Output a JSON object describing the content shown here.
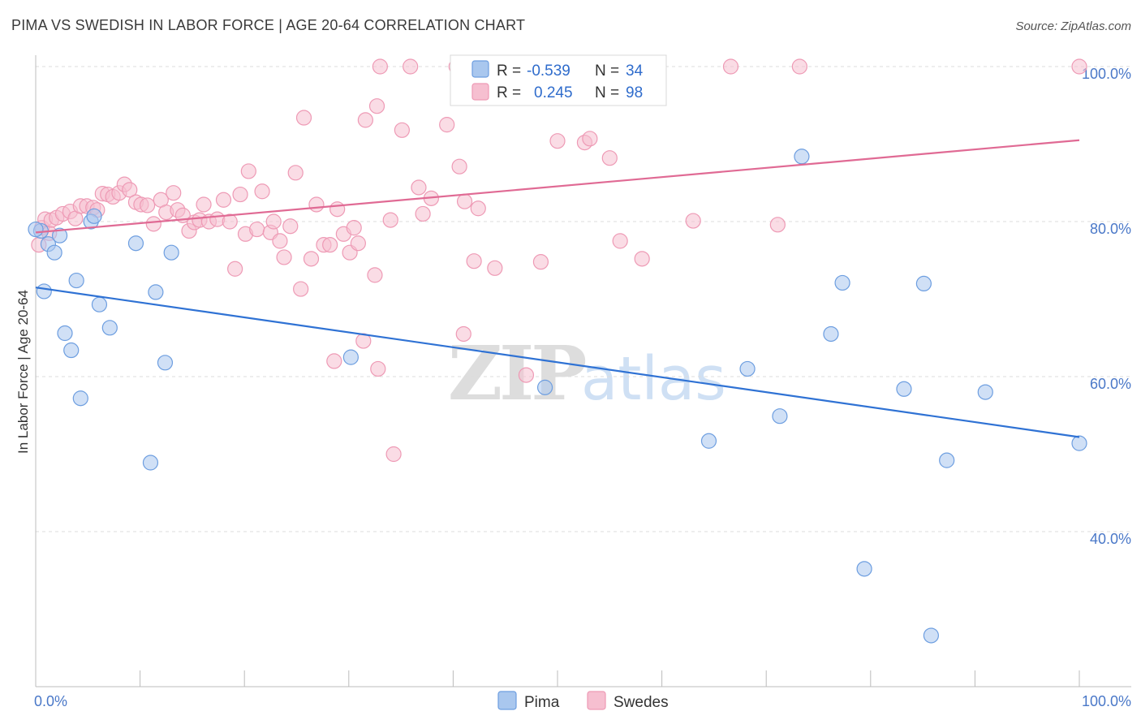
{
  "header": {
    "title": "PIMA VS SWEDISH IN LABOR FORCE | AGE 20-64 CORRELATION CHART",
    "source": "Source: ZipAtlas.com"
  },
  "watermark": {
    "zip": "ZIP",
    "atlas": "atlas"
  },
  "legend_box": {
    "rows": [
      {
        "r_label": "R =",
        "r_value": "-0.539",
        "n_label": "N =",
        "n_value": "34"
      },
      {
        "r_label": "R =",
        "r_value": "0.245",
        "n_label": "N =",
        "n_value": "98"
      }
    ]
  },
  "bottom_legend": {
    "pima": "Pima",
    "swedes": "Swedes"
  },
  "colors": {
    "pima_fill": "#a9c7ee",
    "pima_stroke": "#6d9ee0",
    "pima_line": "#2f72d4",
    "swedes_fill": "#f6bfd0",
    "swedes_stroke": "#ee9ab5",
    "swedes_line": "#e06a94",
    "value_blue": "#2f6ccc",
    "grid": "#dcdcdc"
  },
  "chart_data": {
    "type": "scatter",
    "title": "PIMA VS SWEDISH IN LABOR FORCE | AGE 20-64 CORRELATION CHART",
    "xlabel": "",
    "ylabel": "In Labor Force | Age 20-64",
    "xlim": [
      0,
      100
    ],
    "ylim": [
      20,
      101
    ],
    "x_tick_labels": [
      "0.0%",
      "100.0%"
    ],
    "y_ticks": [
      40,
      60,
      80,
      100
    ],
    "y_tick_labels": [
      "40.0%",
      "60.0%",
      "80.0%",
      "100.0%"
    ],
    "legend_position": "bottom-center",
    "series": [
      {
        "name": "Pima",
        "r": -0.539,
        "n": 34,
        "trend": {
          "x": [
            0,
            100
          ],
          "y": [
            71.5,
            52.2
          ]
        },
        "points": [
          {
            "x": 0.5,
            "y": 78.8
          },
          {
            "x": 1.2,
            "y": 77.1
          },
          {
            "x": 0.8,
            "y": 71.0
          },
          {
            "x": 1.8,
            "y": 76.0
          },
          {
            "x": 2.3,
            "y": 78.2
          },
          {
            "x": 2.8,
            "y": 65.6
          },
          {
            "x": 3.4,
            "y": 63.4
          },
          {
            "x": 3.9,
            "y": 72.4
          },
          {
            "x": 4.3,
            "y": 57.2
          },
          {
            "x": 5.3,
            "y": 80.0
          },
          {
            "x": 5.6,
            "y": 80.7
          },
          {
            "x": 6.1,
            "y": 69.3
          },
          {
            "x": 7.1,
            "y": 66.3
          },
          {
            "x": 9.6,
            "y": 77.2
          },
          {
            "x": 11.0,
            "y": 48.9
          },
          {
            "x": 11.5,
            "y": 70.9
          },
          {
            "x": 12.4,
            "y": 61.8
          },
          {
            "x": 13.0,
            "y": 76.0
          },
          {
            "x": 30.2,
            "y": 62.5
          },
          {
            "x": 48.8,
            "y": 58.6
          },
          {
            "x": 73.4,
            "y": 88.4
          },
          {
            "x": 64.5,
            "y": 51.7
          },
          {
            "x": 68.2,
            "y": 61.0
          },
          {
            "x": 71.3,
            "y": 54.9
          },
          {
            "x": 76.2,
            "y": 65.5
          },
          {
            "x": 77.3,
            "y": 72.1
          },
          {
            "x": 79.4,
            "y": 35.2
          },
          {
            "x": 83.2,
            "y": 58.4
          },
          {
            "x": 85.1,
            "y": 72.0
          },
          {
            "x": 85.8,
            "y": 26.6
          },
          {
            "x": 87.3,
            "y": 49.2
          },
          {
            "x": 91.0,
            "y": 58.0
          },
          {
            "x": 100.0,
            "y": 51.4
          },
          {
            "x": 0.0,
            "y": 79.0
          }
        ]
      },
      {
        "name": "Swedes",
        "r": 0.245,
        "n": 98,
        "trend": {
          "x": [
            0,
            100
          ],
          "y": [
            78.6,
            90.5
          ]
        },
        "points": [
          {
            "x": 0.3,
            "y": 77.0
          },
          {
            "x": 0.6,
            "y": 79.2
          },
          {
            "x": 0.9,
            "y": 80.3
          },
          {
            "x": 1.3,
            "y": 78.5
          },
          {
            "x": 1.5,
            "y": 80.2
          },
          {
            "x": 2.0,
            "y": 80.5
          },
          {
            "x": 2.6,
            "y": 81.0
          },
          {
            "x": 3.3,
            "y": 81.3
          },
          {
            "x": 3.8,
            "y": 80.4
          },
          {
            "x": 4.3,
            "y": 82.0
          },
          {
            "x": 4.9,
            "y": 82.0
          },
          {
            "x": 5.5,
            "y": 81.8
          },
          {
            "x": 5.9,
            "y": 81.5
          },
          {
            "x": 6.4,
            "y": 83.6
          },
          {
            "x": 6.9,
            "y": 83.5
          },
          {
            "x": 7.4,
            "y": 83.2
          },
          {
            "x": 8.0,
            "y": 83.7
          },
          {
            "x": 8.5,
            "y": 84.8
          },
          {
            "x": 9.0,
            "y": 84.1
          },
          {
            "x": 9.6,
            "y": 82.5
          },
          {
            "x": 10.1,
            "y": 82.2
          },
          {
            "x": 10.7,
            "y": 82.1
          },
          {
            "x": 11.3,
            "y": 79.7
          },
          {
            "x": 12.0,
            "y": 82.8
          },
          {
            "x": 12.5,
            "y": 81.2
          },
          {
            "x": 13.2,
            "y": 83.7
          },
          {
            "x": 13.6,
            "y": 81.5
          },
          {
            "x": 14.1,
            "y": 80.8
          },
          {
            "x": 14.7,
            "y": 78.8
          },
          {
            "x": 15.2,
            "y": 79.9
          },
          {
            "x": 15.7,
            "y": 80.2
          },
          {
            "x": 16.1,
            "y": 82.2
          },
          {
            "x": 16.6,
            "y": 80.0
          },
          {
            "x": 17.4,
            "y": 80.3
          },
          {
            "x": 18.0,
            "y": 82.8
          },
          {
            "x": 18.6,
            "y": 80.0
          },
          {
            "x": 19.1,
            "y": 73.9
          },
          {
            "x": 19.6,
            "y": 83.5
          },
          {
            "x": 20.1,
            "y": 78.4
          },
          {
            "x": 20.4,
            "y": 86.5
          },
          {
            "x": 21.2,
            "y": 79.0
          },
          {
            "x": 21.7,
            "y": 83.9
          },
          {
            "x": 22.5,
            "y": 78.6
          },
          {
            "x": 22.8,
            "y": 80.0
          },
          {
            "x": 23.4,
            "y": 77.5
          },
          {
            "x": 23.8,
            "y": 75.4
          },
          {
            "x": 24.4,
            "y": 79.4
          },
          {
            "x": 24.9,
            "y": 86.3
          },
          {
            "x": 25.4,
            "y": 71.3
          },
          {
            "x": 25.7,
            "y": 93.4
          },
          {
            "x": 26.4,
            "y": 75.2
          },
          {
            "x": 26.9,
            "y": 82.2
          },
          {
            "x": 27.6,
            "y": 77.0
          },
          {
            "x": 28.2,
            "y": 77.0
          },
          {
            "x": 28.6,
            "y": 62.0
          },
          {
            "x": 28.9,
            "y": 81.6
          },
          {
            "x": 29.5,
            "y": 78.4
          },
          {
            "x": 30.1,
            "y": 76.0
          },
          {
            "x": 30.5,
            "y": 79.2
          },
          {
            "x": 30.9,
            "y": 77.2
          },
          {
            "x": 31.4,
            "y": 64.6
          },
          {
            "x": 31.6,
            "y": 93.1
          },
          {
            "x": 32.5,
            "y": 73.1
          },
          {
            "x": 32.7,
            "y": 94.9
          },
          {
            "x": 32.8,
            "y": 61.0
          },
          {
            "x": 33.0,
            "y": 100.0
          },
          {
            "x": 34.0,
            "y": 80.2
          },
          {
            "x": 34.3,
            "y": 50.0
          },
          {
            "x": 35.1,
            "y": 91.8
          },
          {
            "x": 35.9,
            "y": 100.0
          },
          {
            "x": 36.7,
            "y": 84.4
          },
          {
            "x": 37.1,
            "y": 81.0
          },
          {
            "x": 37.9,
            "y": 83.0
          },
          {
            "x": 39.4,
            "y": 92.5
          },
          {
            "x": 40.3,
            "y": 100.0
          },
          {
            "x": 40.6,
            "y": 87.1
          },
          {
            "x": 41.0,
            "y": 65.5
          },
          {
            "x": 41.1,
            "y": 82.6
          },
          {
            "x": 42.0,
            "y": 74.9
          },
          {
            "x": 42.4,
            "y": 81.7
          },
          {
            "x": 44.0,
            "y": 74.0
          },
          {
            "x": 47.0,
            "y": 60.2
          },
          {
            "x": 48.4,
            "y": 74.8
          },
          {
            "x": 50.0,
            "y": 90.4
          },
          {
            "x": 52.6,
            "y": 90.2
          },
          {
            "x": 53.1,
            "y": 90.7
          },
          {
            "x": 55.0,
            "y": 88.2
          },
          {
            "x": 56.0,
            "y": 77.5
          },
          {
            "x": 58.1,
            "y": 75.2
          },
          {
            "x": 63.0,
            "y": 80.1
          },
          {
            "x": 66.6,
            "y": 100.0
          },
          {
            "x": 71.1,
            "y": 79.6
          },
          {
            "x": 73.2,
            "y": 100.0
          },
          {
            "x": 100.0,
            "y": 100.0
          }
        ]
      }
    ]
  }
}
